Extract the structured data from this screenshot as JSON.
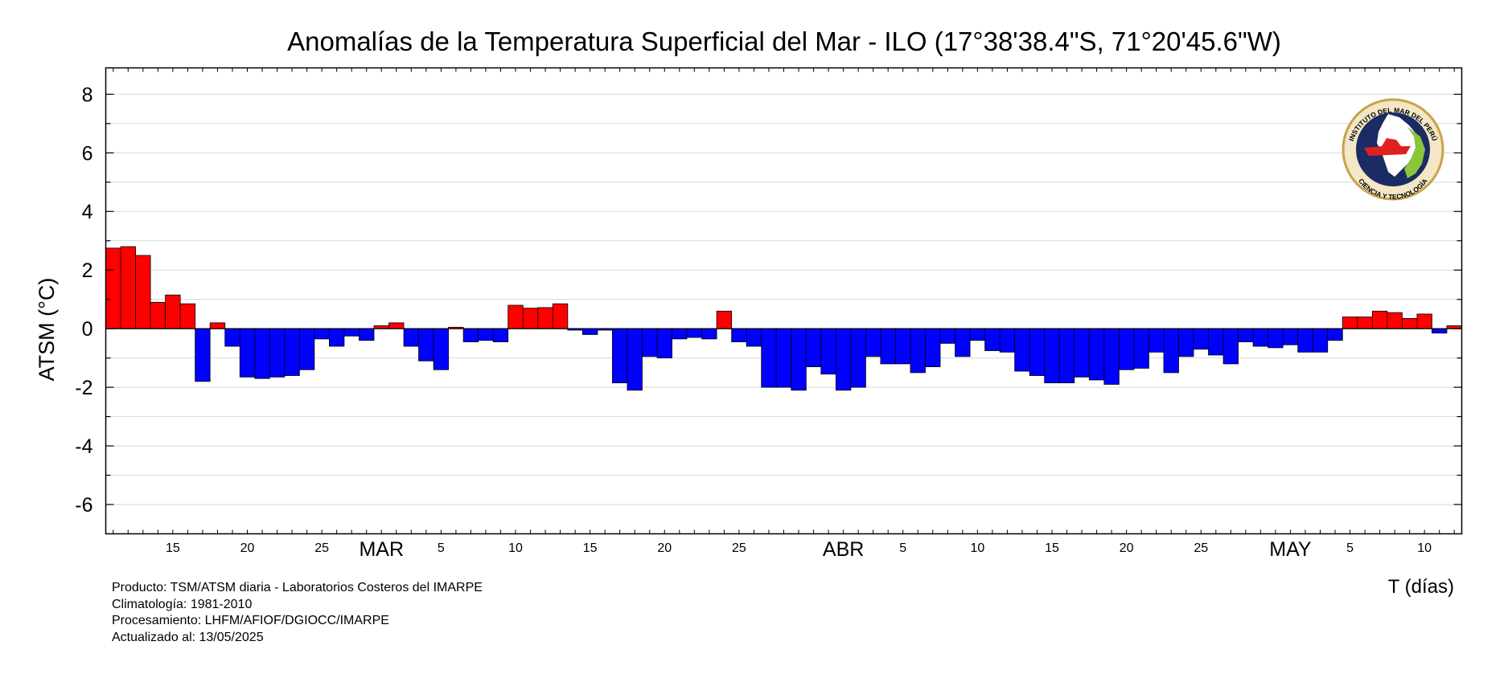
{
  "chart_data": {
    "type": "bar",
    "title": "Anomalías de la Temperatura Superficial del Mar - ILO (17°38'38.4\"S, 71°20'45.6\"W)",
    "xlabel": "T (días)",
    "ylabel": "ATSM (°C)",
    "ylim": [
      -7,
      8.9
    ],
    "yticks": [
      -6,
      -4,
      -2,
      0,
      2,
      4,
      6,
      8
    ],
    "grid": true,
    "colors": {
      "positive": "#ff0000",
      "negative": "#0000ff",
      "grid": "#d9d9d9"
    },
    "start_date": "2025-02-11",
    "xticks": [
      {
        "day": 4,
        "label": "15"
      },
      {
        "day": 9,
        "label": "20"
      },
      {
        "day": 14,
        "label": "25"
      },
      {
        "day": 18,
        "label": "MAR",
        "month": true
      },
      {
        "day": 22,
        "label": "5"
      },
      {
        "day": 27,
        "label": "10"
      },
      {
        "day": 32,
        "label": "15"
      },
      {
        "day": 37,
        "label": "20"
      },
      {
        "day": 42,
        "label": "25"
      },
      {
        "day": 49,
        "label": "ABR",
        "month": true
      },
      {
        "day": 53,
        "label": "5"
      },
      {
        "day": 58,
        "label": "10"
      },
      {
        "day": 63,
        "label": "15"
      },
      {
        "day": 68,
        "label": "20"
      },
      {
        "day": 73,
        "label": "25"
      },
      {
        "day": 79,
        "label": "MAY",
        "month": true
      },
      {
        "day": 83,
        "label": "5"
      },
      {
        "day": 88,
        "label": "10"
      }
    ],
    "values": [
      2.75,
      2.8,
      2.5,
      0.9,
      1.15,
      0.85,
      -1.8,
      0.2,
      -0.6,
      -1.65,
      -1.7,
      -1.65,
      -1.6,
      -1.4,
      -0.35,
      -0.6,
      -0.25,
      -0.4,
      0.1,
      0.2,
      -0.6,
      -1.1,
      -1.4,
      0.05,
      -0.45,
      -0.4,
      -0.45,
      0.8,
      0.7,
      0.72,
      0.85,
      -0.05,
      -0.2,
      -0.05,
      -1.85,
      -2.1,
      -0.95,
      -1.0,
      -0.35,
      -0.3,
      -0.35,
      0.6,
      -0.45,
      -0.6,
      -2.0,
      -2.0,
      -2.1,
      -1.3,
      -1.55,
      -2.1,
      -2.0,
      -0.95,
      -1.2,
      -1.2,
      -1.5,
      -1.3,
      -0.5,
      -0.95,
      -0.4,
      -0.75,
      -0.8,
      -1.45,
      -1.6,
      -1.85,
      -1.85,
      -1.65,
      -1.75,
      -1.9,
      -1.4,
      -1.35,
      -0.8,
      -1.5,
      -0.95,
      -0.7,
      -0.9,
      -1.2,
      -0.45,
      -0.6,
      -0.65,
      -0.55,
      -0.8,
      -0.8,
      -0.4,
      0.4,
      0.4,
      0.6,
      0.55,
      0.35,
      0.5,
      -0.15,
      0.1
    ]
  },
  "footer": {
    "line1": "Producto: TSM/ATSM diaria - Laboratorios Costeros del IMARPE",
    "line2": "Climatología: 1981-2010",
    "line3": "Procesamiento: LHFM/AFIOF/DGIOCC/IMARPE",
    "line4": "Actualizado al: 13/05/2025"
  },
  "logo": {
    "name": "imarpe-logo",
    "top_text": "INSTITUTO DEL MAR DEL PERÚ",
    "bottom_text": "CIENCIA Y TECNOLOGÍA"
  }
}
